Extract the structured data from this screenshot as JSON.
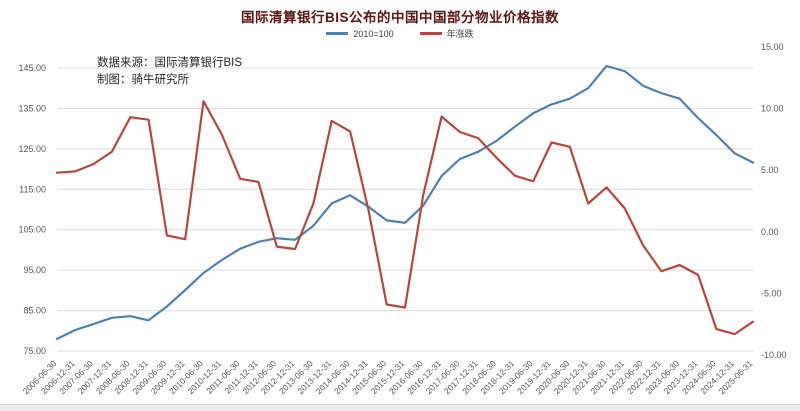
{
  "title": "国际清算银行BIS公布的中国中国部分物业价格指数",
  "legend": [
    {
      "label": "2010=100",
      "color": "#4f81ad"
    },
    {
      "label": "年涨跌",
      "color": "#b5473f"
    }
  ],
  "annotation": {
    "source": "数据来源：国际清算银行BIS",
    "credit": "制图：骑牛研究所"
  },
  "colors": {
    "index_line": "#4f81ad",
    "yoy_line": "#b5473f",
    "gridline": "#dcdcdc",
    "axis_text": "#595959",
    "title_text": "#5d1413"
  },
  "chart_data": {
    "type": "line",
    "title": "国际清算银行BIS公布的中国中国部分物业价格指数",
    "grid": true,
    "legend_position": "top",
    "categories": [
      "2006-06-30",
      "2006-12-31",
      "2007-06-30",
      "2007-12-31",
      "2008-06-30",
      "2008-12-31",
      "2009-06-30",
      "2009-12-31",
      "2010-06-30",
      "2010-12-31",
      "2011-06-30",
      "2011-12-31",
      "2012-06-30",
      "2012-12-31",
      "2013-06-30",
      "2013-12-31",
      "2014-06-30",
      "2014-12-31",
      "2015-06-30",
      "2015-12-31",
      "2016-06-30",
      "2016-12-31",
      "2017-06-30",
      "2017-12-31",
      "2018-06-30",
      "2018-12-31",
      "2019-06-30",
      "2019-12-31",
      "2020-06-30",
      "2020-12-31",
      "2021-06-30",
      "2021-12-31",
      "2022-06-30",
      "2022-12-31",
      "2023-06-30",
      "2023-12-31",
      "2024-06-30",
      "2024-12-31",
      "2025-06-31"
    ],
    "series": [
      {
        "name": "2010=100",
        "axis": "left",
        "color": "#4f81ad",
        "values": [
          78.0,
          80.2,
          81.7,
          83.2,
          83.6,
          82.6,
          86.0,
          90.1,
          94.3,
          97.5,
          100.3,
          102.0,
          102.9,
          102.5,
          106.0,
          111.5,
          113.5,
          110.7,
          107.3,
          106.7,
          111.0,
          118.3,
          122.5,
          124.3,
          127.0,
          130.5,
          133.8,
          136.0,
          137.4,
          140.0,
          145.5,
          144.2,
          140.6,
          138.8,
          137.4,
          132.6,
          128.4,
          123.9,
          121.6
        ]
      },
      {
        "name": "年涨跌",
        "axis": "right",
        "color": "#b5473f",
        "values": [
          4.8,
          4.9,
          5.5,
          6.5,
          9.3,
          9.1,
          -0.3,
          -0.6,
          10.6,
          7.9,
          4.3,
          4.05,
          -1.2,
          -1.4,
          2.3,
          9.0,
          8.15,
          1.8,
          -5.9,
          -6.15,
          3.0,
          9.35,
          8.1,
          7.6,
          6.0,
          4.55,
          4.1,
          7.25,
          6.9,
          2.3,
          3.6,
          1.9,
          -1.1,
          -3.2,
          -2.7,
          -3.5,
          -7.9,
          -8.3,
          -7.3
        ]
      }
    ],
    "left_axis": {
      "min": 75,
      "max": 145,
      "tick_labels": [
        "75.00",
        "85.00",
        "95.00",
        "105.00",
        "115.00",
        "125.00",
        "135.00",
        "145.00"
      ]
    },
    "right_axis": {
      "min": -10,
      "max": 15,
      "tick_labels": [
        "-10.00",
        "-5.00",
        "0.00",
        "5.00",
        "10.00",
        "15.00"
      ]
    }
  }
}
